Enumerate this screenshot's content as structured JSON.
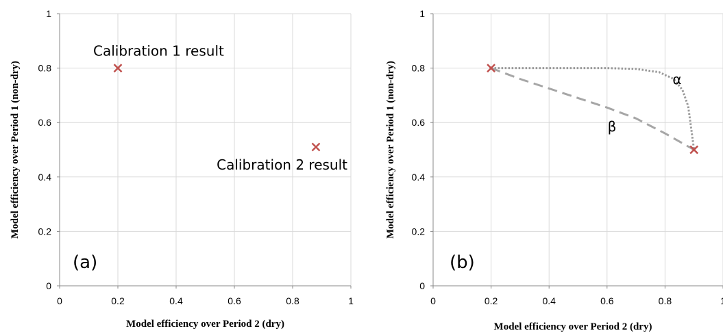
{
  "chart_data": [
    {
      "type": "scatter",
      "panel_label": "(a)",
      "xlabel": "Model efficiency over Period 2 (dry)",
      "ylabel": "Model efficiency over Period 1 (non-dry)",
      "xlim": [
        0,
        1
      ],
      "ylim": [
        0,
        1
      ],
      "xticks": [
        "0",
        "0.2",
        "0.4",
        "0.6",
        "0.8",
        "1"
      ],
      "yticks": [
        "0",
        "0.2",
        "0.4",
        "0.6",
        "0.8",
        "1"
      ],
      "grid": true,
      "marker_color": "#c0504d",
      "points": [
        {
          "x": 0.2,
          "y": 0.8,
          "label": "Calibration 1 result"
        },
        {
          "x": 0.88,
          "y": 0.51,
          "label": "Calibration 2 result"
        }
      ]
    },
    {
      "type": "line",
      "panel_label": "(b)",
      "xlabel": "Model efficiency over Period 2 (dry)",
      "ylabel": "Model efficiency over Period 1 (non-dry)",
      "xlim": [
        0,
        1
      ],
      "ylim": [
        0,
        1
      ],
      "xticks": [
        "0",
        "0.2",
        "0.4",
        "0.6",
        "0.8",
        "1"
      ],
      "yticks": [
        "0",
        "0.2",
        "0.4",
        "0.6",
        "0.8",
        "1"
      ],
      "grid": true,
      "marker_color": "#c0504d",
      "points": [
        {
          "x": 0.2,
          "y": 0.8
        },
        {
          "x": 0.9,
          "y": 0.5
        }
      ],
      "series": [
        {
          "name": "α",
          "style": "dotted",
          "color": "#999999",
          "x": [
            0.2,
            0.4,
            0.6,
            0.7,
            0.78,
            0.83,
            0.86,
            0.88,
            0.89,
            0.9
          ],
          "y": [
            0.8,
            0.8,
            0.8,
            0.797,
            0.785,
            0.76,
            0.72,
            0.66,
            0.58,
            0.5
          ]
        },
        {
          "name": "β",
          "style": "dashed",
          "color": "#a6a6a6",
          "x": [
            0.2,
            0.3,
            0.4,
            0.5,
            0.6,
            0.7,
            0.8,
            0.9
          ],
          "y": [
            0.8,
            0.76,
            0.725,
            0.69,
            0.655,
            0.615,
            0.56,
            0.5
          ]
        }
      ]
    }
  ]
}
